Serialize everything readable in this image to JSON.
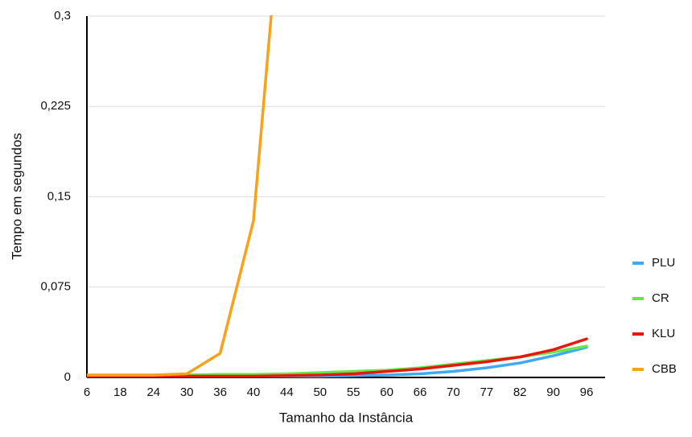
{
  "chart_data": {
    "type": "line",
    "y_label": "Tempo em segundos",
    "x_label": "Tamanho da Instância",
    "categories": [
      "6",
      "18",
      "24",
      "30",
      "36",
      "40",
      "44",
      "50",
      "55",
      "60",
      "66",
      "70",
      "77",
      "82",
      "90",
      "96"
    ],
    "series": [
      {
        "name": "PLU",
        "color": "#3fa9f5",
        "values": [
          0.001,
          0.001,
          0.001,
          0.001,
          0.001,
          0.001,
          0.001,
          0.001,
          0.0015,
          0.002,
          0.003,
          0.005,
          0.008,
          0.012,
          0.018,
          0.025
        ]
      },
      {
        "name": "CR",
        "color": "#66e64a",
        "values": [
          0.002,
          0.002,
          0.002,
          0.002,
          0.0025,
          0.0025,
          0.003,
          0.004,
          0.005,
          0.006,
          0.008,
          0.011,
          0.014,
          0.017,
          0.021,
          0.026
        ]
      },
      {
        "name": "KLU",
        "color": "#e8160f",
        "values": [
          0.001,
          0.001,
          0.001,
          0.001,
          0.001,
          0.001,
          0.0015,
          0.002,
          0.003,
          0.005,
          0.007,
          0.01,
          0.013,
          0.017,
          0.023,
          0.032
        ]
      },
      {
        "name": "CBB",
        "color": "#f7a21b",
        "values": [
          0.002,
          0.002,
          0.002,
          0.003,
          0.02,
          0.13,
          0.45,
          null,
          null,
          null,
          null,
          null,
          null,
          null,
          null,
          null
        ]
      }
    ],
    "ylim": [
      0,
      0.3
    ],
    "yticks": [
      0,
      {
        "value": 0.075,
        "label": "0,075"
      },
      {
        "value": 0.15,
        "label": "0,15"
      },
      {
        "value": 0.225,
        "label": "0,225"
      },
      {
        "value": 0.3,
        "label": "0,3"
      }
    ],
    "grid": true,
    "legend": "right"
  }
}
